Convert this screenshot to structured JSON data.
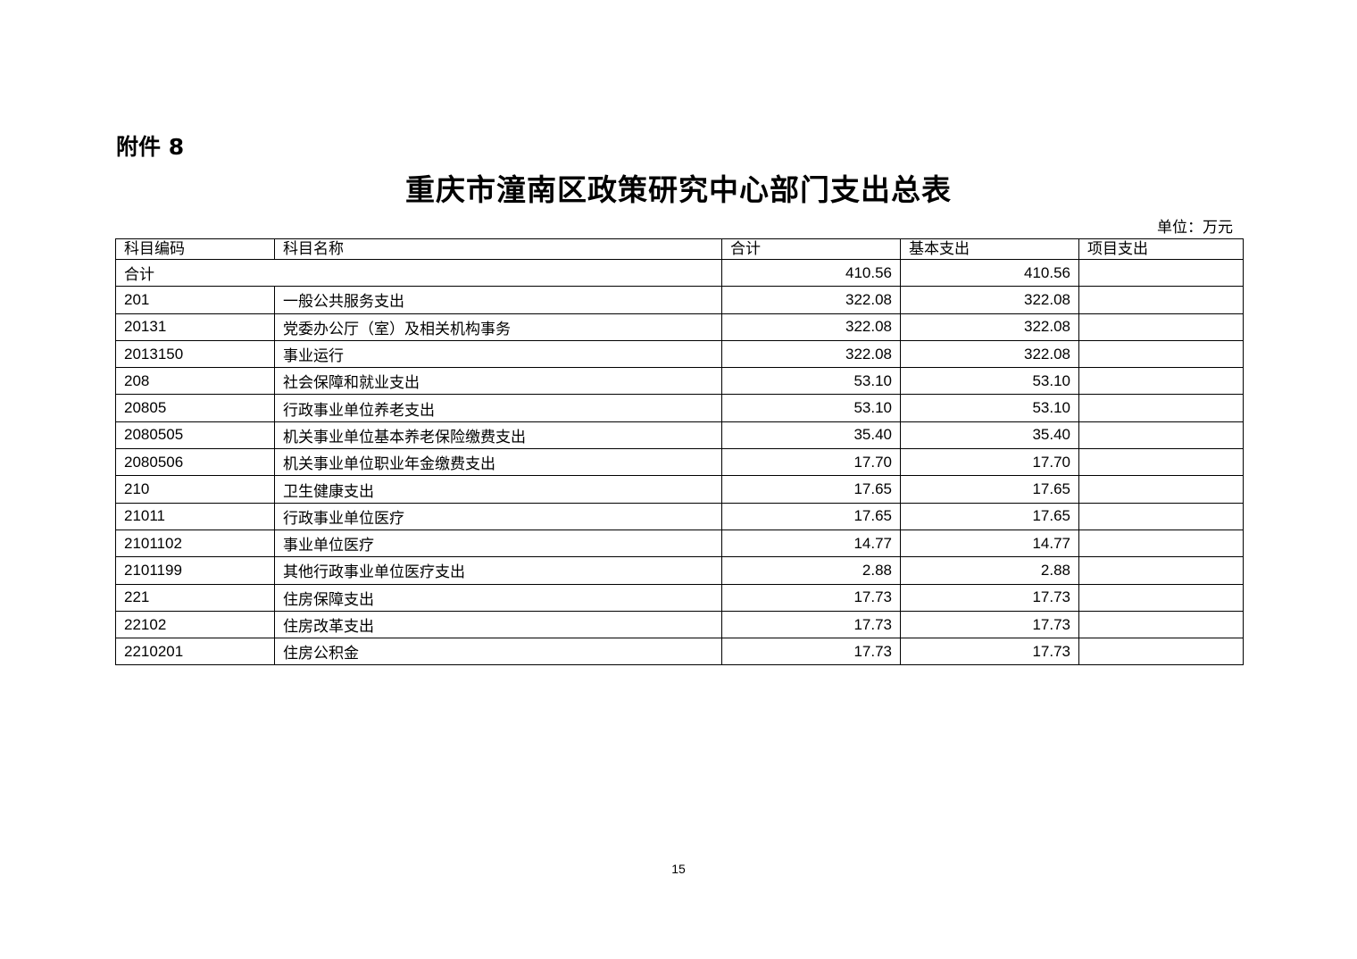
{
  "attachment_label": "附件 8",
  "title": "重庆市潼南区政策研究中心部门支出总表",
  "unit": "单位：万元",
  "table": {
    "headers": [
      "科目编码",
      "科目名称",
      "合计",
      "基本支出",
      "项目支出"
    ],
    "total": {
      "label": "合计",
      "total": "410.56",
      "basic": "410.56",
      "project": ""
    },
    "rows": [
      {
        "code": "201",
        "name": "一般公共服务支出",
        "total": "322.08",
        "basic": "322.08",
        "project": ""
      },
      {
        "code": "20131",
        "name": "党委办公厅（室）及相关机构事务",
        "total": "322.08",
        "basic": "322.08",
        "project": ""
      },
      {
        "code": "2013150",
        "name": "事业运行",
        "total": "322.08",
        "basic": "322.08",
        "project": ""
      },
      {
        "code": "208",
        "name": "社会保障和就业支出",
        "total": "53.10",
        "basic": "53.10",
        "project": ""
      },
      {
        "code": "20805",
        "name": "行政事业单位养老支出",
        "total": "53.10",
        "basic": "53.10",
        "project": ""
      },
      {
        "code": "2080505",
        "name": "机关事业单位基本养老保险缴费支出",
        "total": "35.40",
        "basic": "35.40",
        "project": ""
      },
      {
        "code": "2080506",
        "name": "机关事业单位职业年金缴费支出",
        "total": "17.70",
        "basic": "17.70",
        "project": ""
      },
      {
        "code": "210",
        "name": "卫生健康支出",
        "total": "17.65",
        "basic": "17.65",
        "project": ""
      },
      {
        "code": "21011",
        "name": "行政事业单位医疗",
        "total": "17.65",
        "basic": "17.65",
        "project": ""
      },
      {
        "code": "2101102",
        "name": "事业单位医疗",
        "total": "14.77",
        "basic": "14.77",
        "project": ""
      },
      {
        "code": "2101199",
        "name": "其他行政事业单位医疗支出",
        "total": "2.88",
        "basic": "2.88",
        "project": ""
      },
      {
        "code": "221",
        "name": "住房保障支出",
        "total": "17.73",
        "basic": "17.73",
        "project": ""
      },
      {
        "code": "22102",
        "name": "住房改革支出",
        "total": "17.73",
        "basic": "17.73",
        "project": ""
      },
      {
        "code": "2210201",
        "name": "住房公积金",
        "total": "17.73",
        "basic": "17.73",
        "project": ""
      }
    ]
  },
  "page_number": "15"
}
